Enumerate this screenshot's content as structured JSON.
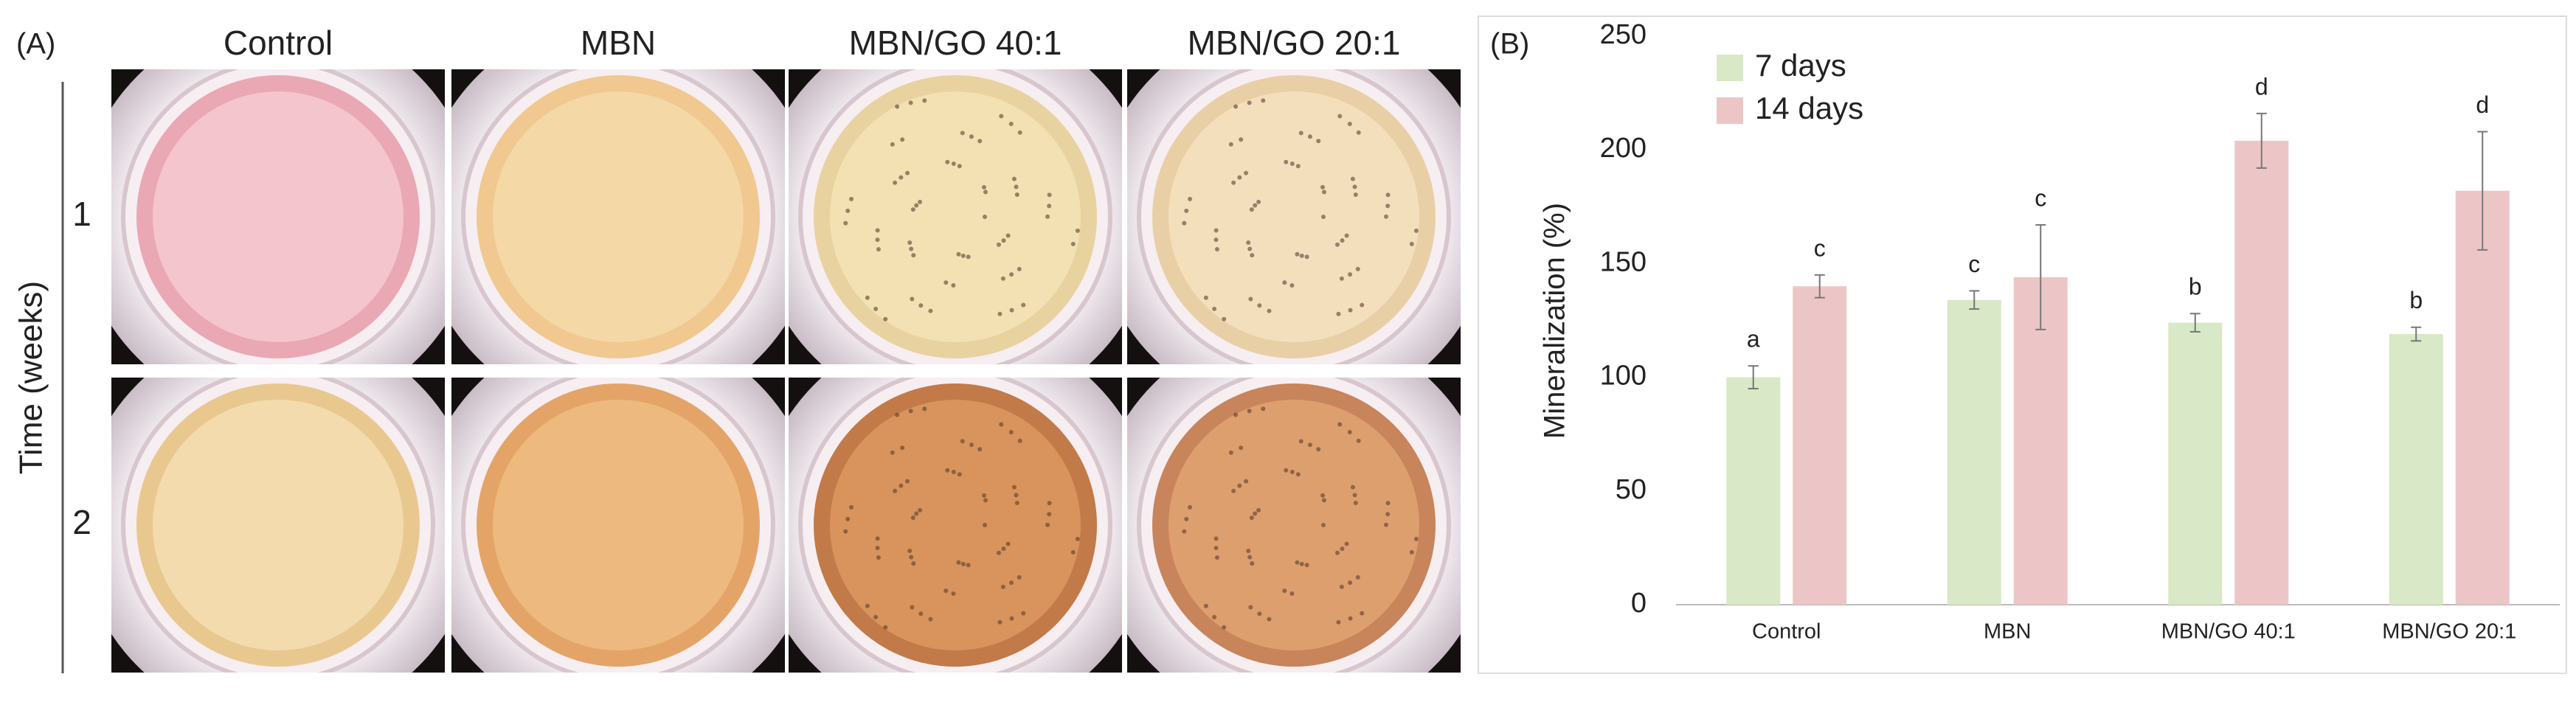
{
  "panel_a": {
    "label": "(A)",
    "columns": [
      "Control",
      "MBN",
      "MBN/GO 40:1",
      "MBN/GO 20:1"
    ],
    "rows": [
      "1",
      "2"
    ],
    "row_axis_label": "Time (weeks)"
  },
  "chart_data": {
    "type": "bar",
    "label": "(B)",
    "y_label": "Mineralization (%)",
    "categories": [
      "Control",
      "MBN",
      "MBN/GO 40:1",
      "MBN/GO 20:1"
    ],
    "series": [
      {
        "name": "7 days",
        "color": "#d9e8c6",
        "values": [
          100,
          134,
          124,
          119
        ],
        "errors": [
          5,
          4,
          4,
          3
        ],
        "letters": [
          "a",
          "c",
          "b",
          "b"
        ]
      },
      {
        "name": "14 days",
        "color": "#ecc6c6",
        "values": [
          140,
          144,
          204,
          182
        ],
        "errors": [
          5,
          23,
          12,
          26
        ],
        "letters": [
          "c",
          "c",
          "d",
          "d"
        ]
      }
    ],
    "ylim": [
      0,
      250
    ],
    "yticks": [
      0,
      50,
      100,
      150,
      200,
      250
    ],
    "grid": false,
    "legend": "upper left"
  }
}
